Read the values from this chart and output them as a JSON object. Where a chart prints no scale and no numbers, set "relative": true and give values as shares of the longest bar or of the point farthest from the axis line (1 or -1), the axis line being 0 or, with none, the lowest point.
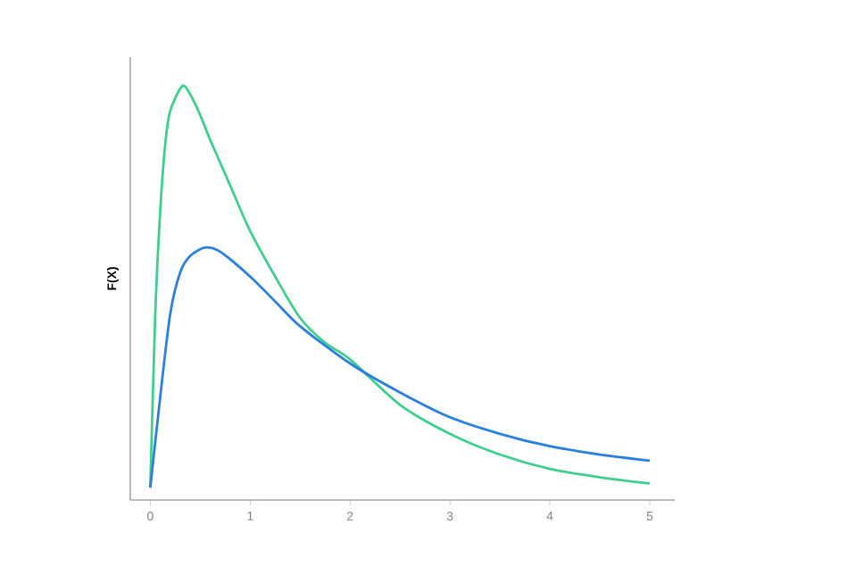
{
  "chart_data": {
    "type": "line",
    "relative": true,
    "ylabel": "F(X)",
    "xlim": [
      -0.2,
      5.25
    ],
    "xticks": [
      0,
      1,
      2,
      3,
      4,
      5
    ],
    "marker": "none",
    "line_style": "solid",
    "series": [
      {
        "color": "#3ecf8e",
        "x": [
          0,
          0.05,
          0.1,
          0.15,
          0.2,
          0.32,
          0.4,
          0.5,
          0.6,
          0.8,
          1.0,
          1.25,
          1.5,
          1.75,
          2.0,
          2.5,
          3.0,
          3.5,
          4.0,
          4.5,
          5.0
        ],
        "values": [
          0.03,
          0.45,
          0.7,
          0.86,
          0.94,
          1.0,
          0.98,
          0.93,
          0.87,
          0.76,
          0.65,
          0.54,
          0.44,
          0.38,
          0.34,
          0.23,
          0.16,
          0.11,
          0.075,
          0.055,
          0.04
        ]
      },
      {
        "color": "#2b80dc",
        "x": [
          0,
          0.1,
          0.2,
          0.3,
          0.4,
          0.55,
          0.7,
          1.0,
          1.25,
          1.5,
          2.0,
          2.5,
          3.0,
          3.5,
          4.0,
          4.5,
          5.0
        ],
        "values": [
          0.03,
          0.25,
          0.45,
          0.55,
          0.59,
          0.61,
          0.6,
          0.54,
          0.48,
          0.42,
          0.33,
          0.26,
          0.2,
          0.16,
          0.13,
          0.11,
          0.095
        ]
      }
    ]
  }
}
